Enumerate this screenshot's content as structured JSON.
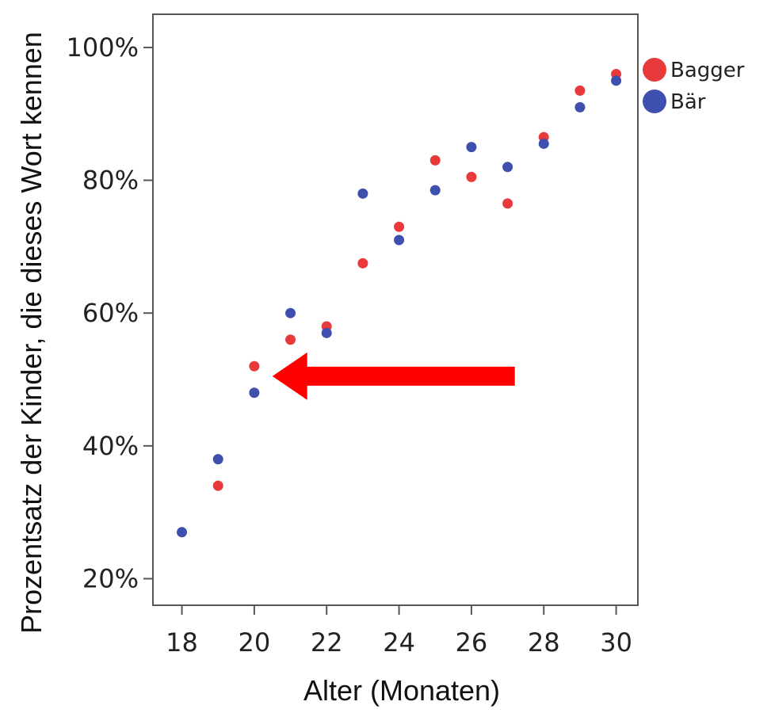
{
  "chart_data": {
    "type": "scatter",
    "xlabel": "Alter (Monaten)",
    "ylabel": "Prozentsatz der Kinder, die dieses Wort kennen",
    "xlim": [
      17.2,
      30.6
    ],
    "ylim": [
      16,
      105
    ],
    "xticks": [
      18,
      20,
      22,
      24,
      26,
      28,
      30
    ],
    "yticks": [
      20,
      40,
      60,
      80,
      100
    ],
    "ytick_labels": [
      "20%",
      "40%",
      "60%",
      "80%",
      "100%"
    ],
    "grid": false,
    "legend_position": "top-right, outside plot",
    "series": [
      {
        "name": "Bagger",
        "color": "#e83a3a",
        "points": [
          [
            19,
            34
          ],
          [
            20,
            52
          ],
          [
            21,
            56
          ],
          [
            22,
            58
          ],
          [
            23,
            67.5
          ],
          [
            24,
            73
          ],
          [
            25,
            83
          ],
          [
            26,
            80.5
          ],
          [
            27,
            76.5
          ],
          [
            28,
            86.5
          ],
          [
            29,
            93.5
          ],
          [
            30,
            96
          ]
        ]
      },
      {
        "name": "Bär",
        "color": "#3f4fae",
        "points": [
          [
            18,
            27
          ],
          [
            19,
            38
          ],
          [
            20,
            48
          ],
          [
            21,
            60
          ],
          [
            22,
            57
          ],
          [
            23,
            78
          ],
          [
            24,
            71
          ],
          [
            25,
            78.5
          ],
          [
            26,
            85
          ],
          [
            27,
            82
          ],
          [
            28,
            85.5
          ],
          [
            29,
            91
          ],
          [
            30,
            95
          ]
        ]
      }
    ],
    "annotation": {
      "type": "arrow",
      "color": "#ff0000",
      "from": [
        27.2,
        50.5
      ],
      "to": [
        20.5,
        50.5
      ]
    }
  }
}
